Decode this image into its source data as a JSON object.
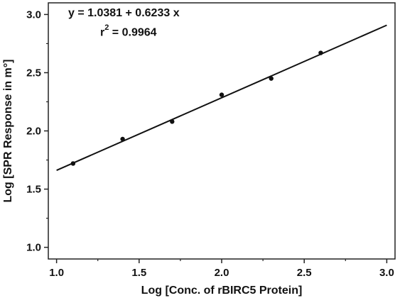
{
  "chart_data": {
    "type": "scatter",
    "title": "",
    "xlabel": "Log [Conc. of rBIRC5 Protein]",
    "ylabel": "Log [SPR Response in m°]",
    "xlim": [
      0.95,
      3.05
    ],
    "ylim": [
      0.9,
      3.1
    ],
    "xticks": [
      "1.0",
      "1.5",
      "2.0",
      "2.5",
      "3.0"
    ],
    "yticks": [
      "1.0",
      "1.5",
      "2.0",
      "2.5",
      "3.0"
    ],
    "grid": false,
    "legend": "none",
    "series": [
      {
        "x": [
          1.1,
          1.4,
          1.7,
          2.0,
          2.3,
          2.6
        ],
        "y": [
          1.72,
          1.93,
          2.08,
          2.31,
          2.45,
          2.67
        ]
      }
    ],
    "fit": {
      "intercept": 1.0381,
      "slope": 0.6233,
      "x_range": [
        1.0,
        3.0
      ]
    },
    "annotation": {
      "equation": "y = 1.0381 + 0.6233 x",
      "r2_prefix": "r",
      "r2_sup": "2",
      "r2_value": " = 0.9964"
    }
  }
}
